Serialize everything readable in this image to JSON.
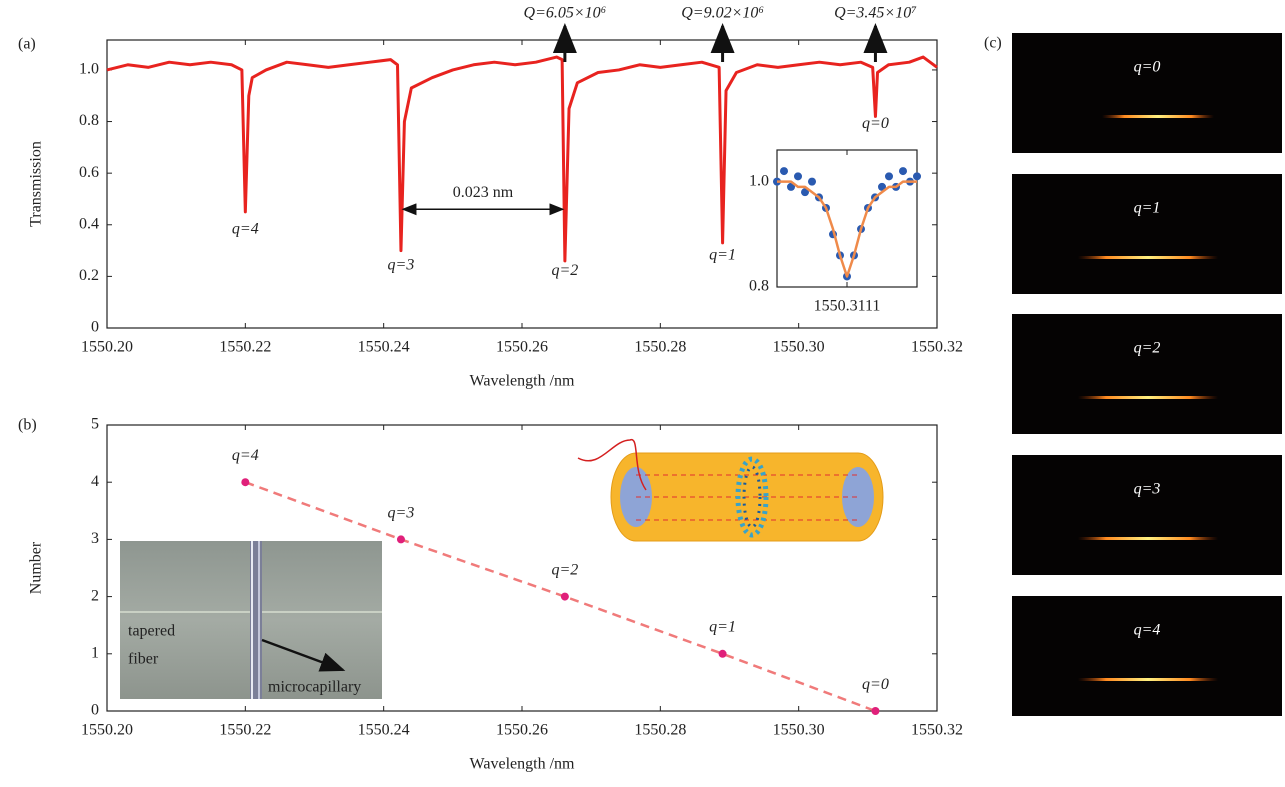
{
  "chart_data": [
    {
      "type": "line",
      "label": "(a)",
      "xlabel": "Wavelength /nm",
      "ylabel": "Transmission",
      "xlim": [
        1550.2,
        1550.32
      ],
      "ylim": [
        0,
        1.116
      ],
      "xticks": [
        {
          "value": 1550.2,
          "label": "1550.20"
        },
        1550.22,
        1550.24,
        1550.26,
        1550.28,
        {
          "value": 1550.3,
          "label": "1550.30"
        },
        1550.32
      ],
      "yticks": [
        0,
        0.2,
        0.4,
        0.6,
        0.8,
        {
          "value": 1.0,
          "label": "1.0"
        }
      ],
      "x": [
        1550.2,
        1550.203,
        1550.206,
        1550.209,
        1550.212,
        1550.215,
        1550.218,
        1550.2195,
        1550.22,
        1550.2205,
        1550.221,
        1550.223,
        1550.226,
        1550.229,
        1550.232,
        1550.235,
        1550.238,
        1550.241,
        1550.242,
        1550.2425,
        1550.243,
        1550.244,
        1550.247,
        1550.25,
        1550.253,
        1550.256,
        1550.259,
        1550.262,
        1550.265,
        1550.2658,
        1550.2662,
        1550.2668,
        1550.268,
        1550.271,
        1550.274,
        1550.277,
        1550.28,
        1550.283,
        1550.286,
        1550.2885,
        1550.289,
        1550.2895,
        1550.291,
        1550.294,
        1550.297,
        1550.3,
        1550.303,
        1550.306,
        1550.309,
        1550.3107,
        1550.3111,
        1550.3114,
        1550.313,
        1550.316,
        1550.318,
        1550.32
      ],
      "series": [
        {
          "color": "#e8231f",
          "mode": "line",
          "values": [
            1.0,
            1.02,
            1.01,
            1.03,
            1.02,
            1.03,
            1.02,
            1.0,
            0.45,
            0.9,
            0.97,
            1.0,
            1.03,
            1.02,
            1.01,
            1.02,
            1.03,
            1.04,
            1.02,
            0.3,
            0.8,
            0.93,
            0.97,
            1.0,
            1.02,
            1.03,
            1.02,
            1.03,
            1.05,
            1.04,
            0.26,
            0.85,
            0.95,
            0.99,
            1.0,
            1.02,
            1.01,
            1.02,
            1.03,
            1.01,
            0.33,
            0.92,
            0.99,
            1.02,
            1.01,
            1.02,
            1.03,
            1.02,
            1.03,
            1.01,
            0.82,
            0.99,
            1.02,
            1.03,
            1.05,
            1.01
          ]
        }
      ],
      "annotations": [
        {
          "text": "q=4",
          "x": 1550.22,
          "y": 0.38
        },
        {
          "text": "q=3",
          "x": 1550.2425,
          "y": 0.24
        },
        {
          "text": "q=2",
          "x": 1550.2662,
          "y": 0.22
        },
        {
          "text": "q=1",
          "x": 1550.289,
          "y": 0.28
        },
        {
          "text": "q=0",
          "x": 1550.3111,
          "y": 0.79
        }
      ],
      "markers": [
        {
          "text": "Q=6.05×10⁶",
          "x": 1550.2662
        },
        {
          "text": "Q=9.02×10⁶",
          "x": 1550.289
        },
        {
          "text": "Q=3.45×10⁷",
          "x": 1550.3111
        }
      ],
      "span": {
        "text": "0.023 nm",
        "x": [
          1550.2425,
          1550.2662
        ],
        "y": 0.46
      }
    },
    {
      "type": "scatter",
      "xlim": [
        1550.3106,
        1550.3116
      ],
      "ylim": [
        0.8,
        1.06
      ],
      "xticks": [
        {
          "value": 1550.3111,
          "label": "1550.3111"
        }
      ],
      "yticks": [
        {
          "value": 0.8,
          "label": "0.8"
        },
        {
          "value": 1.0,
          "label": "1.0"
        }
      ],
      "x": [
        1550.3106,
        1550.31065,
        1550.3107,
        1550.31075,
        1550.3108,
        1550.31085,
        1550.3109,
        1550.31095,
        1550.311,
        1550.31105,
        1550.3111,
        1550.31115,
        1550.3112,
        1550.31125,
        1550.3113,
        1550.31135,
        1550.3114,
        1550.31145,
        1550.3115,
        1550.31155,
        1550.3116
      ],
      "series": [
        {
          "color": "#2a5ab0",
          "mode": "markers",
          "values": [
            1.0,
            1.02,
            0.99,
            1.01,
            0.98,
            1.0,
            0.97,
            0.95,
            0.9,
            0.86,
            0.82,
            0.86,
            0.91,
            0.95,
            0.97,
            0.99,
            1.01,
            0.99,
            1.02,
            1.0,
            1.01
          ]
        },
        {
          "color": "#ef8a4a",
          "mode": "line",
          "values": [
            1.0,
            1.0,
            1.0,
            0.99,
            0.99,
            0.98,
            0.97,
            0.95,
            0.91,
            0.86,
            0.82,
            0.86,
            0.91,
            0.95,
            0.97,
            0.98,
            0.99,
            0.99,
            1.0,
            1.0,
            1.0
          ]
        }
      ]
    },
    {
      "type": "scatter",
      "label": "(b)",
      "xlabel": "Wavelength /nm",
      "ylabel": "Number",
      "xlim": [
        1550.2,
        1550.32
      ],
      "ylim": [
        0,
        5
      ],
      "xticks": [
        {
          "value": 1550.2,
          "label": "1550.20"
        },
        1550.22,
        1550.24,
        1550.26,
        1550.28,
        {
          "value": 1550.3,
          "label": "1550.30"
        },
        1550.32
      ],
      "yticks": [
        0,
        1,
        2,
        3,
        4,
        5
      ],
      "x": [
        1550.22,
        1550.2425,
        1550.2662,
        1550.289,
        1550.3111
      ],
      "series": [
        {
          "color": "#e0207a",
          "mode": "lines+markers",
          "line_color": "#f07a7a",
          "line_dash": true,
          "values": [
            4,
            3,
            2,
            1,
            0
          ]
        }
      ],
      "annotations": [
        {
          "text": "q=4",
          "x": 1550.22,
          "y": 4.45
        },
        {
          "text": "q=3",
          "x": 1550.2425,
          "y": 3.45
        },
        {
          "text": "q=2",
          "x": 1550.2662,
          "y": 2.45
        },
        {
          "text": "q=1",
          "x": 1550.289,
          "y": 1.45
        },
        {
          "text": "q=0",
          "x": 1550.3111,
          "y": 0.45
        }
      ],
      "photo_labels": {
        "fiber": [
          "tapered",
          "fiber"
        ],
        "capillary": "microcapillary"
      }
    }
  ],
  "panel_c": {
    "label": "(c)",
    "images": [
      "q=0",
      "q=1",
      "q=2",
      "q=3",
      "q=4"
    ]
  }
}
